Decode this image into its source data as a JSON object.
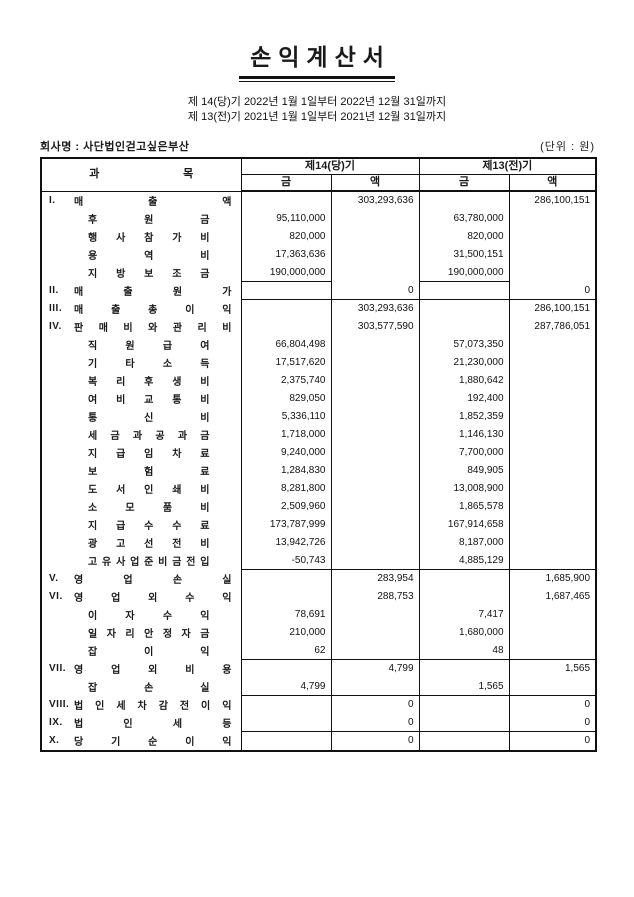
{
  "title": "손익계산서",
  "period_lines": [
    "제 14(당)기 2022년  1월  1일부터  2022년 12월 31일까지",
    "제 13(전)기 2021년  1월  1일부터  2021년 12월 31일까지"
  ],
  "company_label": "회사명 : 사단법인걷고싶은부산",
  "unit_label": "(단위 : 원)",
  "table": {
    "account_header": "과목",
    "col_groups": [
      "제14(당)기",
      "제13(전)기"
    ],
    "sub_headers": [
      "금",
      "액",
      "금",
      "액"
    ],
    "rows": [
      {
        "level": "main",
        "prefix": "I.",
        "label": "매출액",
        "g14": "",
        "a14": "303,293,636",
        "g13": "",
        "a13": "286,100,151",
        "rule": ""
      },
      {
        "level": "sub",
        "prefix": "",
        "label": "후원금",
        "g14": "95,110,000",
        "a14": "",
        "g13": "63,780,000",
        "a13": "",
        "rule": ""
      },
      {
        "level": "sub",
        "prefix": "",
        "label": "행사참가비",
        "g14": "820,000",
        "a14": "",
        "g13": "820,000",
        "a13": "",
        "rule": ""
      },
      {
        "level": "sub",
        "prefix": "",
        "label": "용역비",
        "g14": "17,363,636",
        "a14": "",
        "g13": "31,500,151",
        "a13": "",
        "rule": ""
      },
      {
        "level": "sub",
        "prefix": "",
        "label": "지방보조금",
        "g14": "190,000,000",
        "a14": "",
        "g13": "190,000,000",
        "a13": "",
        "rule": "geum"
      },
      {
        "level": "main",
        "prefix": "II.",
        "label": "매출원가",
        "g14": "",
        "a14": "0",
        "g13": "",
        "a13": "0",
        "rule": "all"
      },
      {
        "level": "main",
        "prefix": "III.",
        "label": "매출총이익",
        "g14": "",
        "a14": "303,293,636",
        "g13": "",
        "a13": "286,100,151",
        "rule": ""
      },
      {
        "level": "main",
        "prefix": "IV.",
        "label": "판매비와관리비",
        "g14": "",
        "a14": "303,577,590",
        "g13": "",
        "a13": "287,786,051",
        "rule": ""
      },
      {
        "level": "sub",
        "prefix": "",
        "label": "직원급여",
        "g14": "66,804,498",
        "a14": "",
        "g13": "57,073,350",
        "a13": "",
        "rule": ""
      },
      {
        "level": "sub",
        "prefix": "",
        "label": "기타소득",
        "g14": "17,517,620",
        "a14": "",
        "g13": "21,230,000",
        "a13": "",
        "rule": ""
      },
      {
        "level": "sub",
        "prefix": "",
        "label": "복리후생비",
        "g14": "2,375,740",
        "a14": "",
        "g13": "1,880,642",
        "a13": "",
        "rule": ""
      },
      {
        "level": "sub",
        "prefix": "",
        "label": "여비교통비",
        "g14": "829,050",
        "a14": "",
        "g13": "192,400",
        "a13": "",
        "rule": ""
      },
      {
        "level": "sub",
        "prefix": "",
        "label": "통신비",
        "g14": "5,336,110",
        "a14": "",
        "g13": "1,852,359",
        "a13": "",
        "rule": ""
      },
      {
        "level": "sub",
        "prefix": "",
        "label": "세금과공과금",
        "g14": "1,718,000",
        "a14": "",
        "g13": "1,146,130",
        "a13": "",
        "rule": ""
      },
      {
        "level": "sub",
        "prefix": "",
        "label": "지급임차료",
        "g14": "9,240,000",
        "a14": "",
        "g13": "7,700,000",
        "a13": "",
        "rule": ""
      },
      {
        "level": "sub",
        "prefix": "",
        "label": "보험료",
        "g14": "1,284,830",
        "a14": "",
        "g13": "849,905",
        "a13": "",
        "rule": ""
      },
      {
        "level": "sub",
        "prefix": "",
        "label": "도서인쇄비",
        "g14": "8,281,800",
        "a14": "",
        "g13": "13,008,900",
        "a13": "",
        "rule": ""
      },
      {
        "level": "sub",
        "prefix": "",
        "label": "소모품비",
        "g14": "2,509,960",
        "a14": "",
        "g13": "1,865,578",
        "a13": "",
        "rule": ""
      },
      {
        "level": "sub",
        "prefix": "",
        "label": "지급수수료",
        "g14": "173,787,999",
        "a14": "",
        "g13": "167,914,658",
        "a13": "",
        "rule": ""
      },
      {
        "level": "sub",
        "prefix": "",
        "label": "광고선전비",
        "g14": "13,942,726",
        "a14": "",
        "g13": "8,187,000",
        "a13": "",
        "rule": ""
      },
      {
        "level": "sub",
        "prefix": "",
        "label": "고유사업준비금전입",
        "g14": "-50,743",
        "a14": "",
        "g13": "4,885,129",
        "a13": "",
        "rule": "all"
      },
      {
        "level": "main",
        "prefix": "V.",
        "label": "영업손실",
        "g14": "",
        "a14": "283,954",
        "g13": "",
        "a13": "1,685,900",
        "rule": ""
      },
      {
        "level": "main",
        "prefix": "VI.",
        "label": "영업외수익",
        "g14": "",
        "a14": "288,753",
        "g13": "",
        "a13": "1,687,465",
        "rule": ""
      },
      {
        "level": "sub",
        "prefix": "",
        "label": "이자수익",
        "g14": "78,691",
        "a14": "",
        "g13": "7,417",
        "a13": "",
        "rule": ""
      },
      {
        "level": "sub",
        "prefix": "",
        "label": "일자리안정자금",
        "g14": "210,000",
        "a14": "",
        "g13": "1,680,000",
        "a13": "",
        "rule": ""
      },
      {
        "level": "sub",
        "prefix": "",
        "label": "잡이익",
        "g14": "62",
        "a14": "",
        "g13": "48",
        "a13": "",
        "rule": "all"
      },
      {
        "level": "main",
        "prefix": "VII.",
        "label": "영업외비용",
        "g14": "",
        "a14": "4,799",
        "g13": "",
        "a13": "1,565",
        "rule": ""
      },
      {
        "level": "sub",
        "prefix": "",
        "label": "잡손실",
        "g14": "4,799",
        "a14": "",
        "g13": "1,565",
        "a13": "",
        "rule": "all"
      },
      {
        "level": "main",
        "prefix": "VIII.",
        "label": "법인세차감전이익",
        "g14": "",
        "a14": "0",
        "g13": "",
        "a13": "0",
        "rule": ""
      },
      {
        "level": "main",
        "prefix": "IX.",
        "label": "법인세등",
        "g14": "",
        "a14": "0",
        "g13": "",
        "a13": "0",
        "rule": "all"
      },
      {
        "level": "main",
        "prefix": "X.",
        "label": "당기순이익",
        "g14": "",
        "a14": "0",
        "g13": "",
        "a13": "0",
        "rule": ""
      }
    ]
  }
}
